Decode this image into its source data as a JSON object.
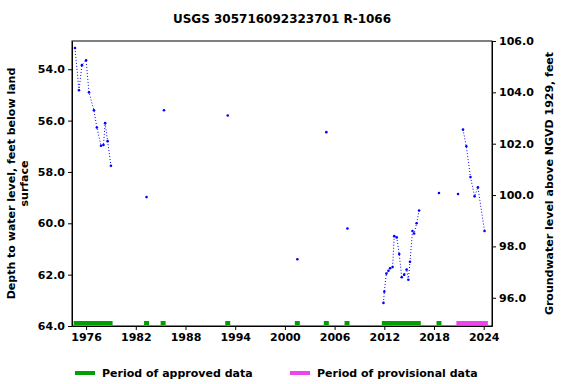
{
  "chart_data": {
    "type": "line",
    "title": "USGS 305716092323701 R-1066",
    "ylabel": [
      "Depth to water level, feet below land",
      "surface"
    ],
    "y2label": "Groundwater level above NGVD 1929, feet",
    "xlim": [
      1974.3,
      2025.0
    ],
    "xticks": [
      1976,
      1982,
      1988,
      1994,
      2000,
      2006,
      2012,
      2018,
      2024
    ],
    "ylim": [
      52.9,
      64.0
    ],
    "yticks": [
      {
        "value": 54,
        "label": "54.0"
      },
      {
        "value": 56,
        "label": "56.0"
      },
      {
        "value": 58,
        "label": "58.0"
      },
      {
        "value": 60,
        "label": "60.0"
      },
      {
        "value": 62,
        "label": "62.0"
      },
      {
        "value": 64,
        "label": "64.0"
      }
    ],
    "y2lim": [
      94.9,
      106.0
    ],
    "y2ticks": [
      {
        "value": 96,
        "label": "96.0"
      },
      {
        "value": 98,
        "label": "98.0"
      },
      {
        "value": 100,
        "label": "100.0"
      },
      {
        "value": 102,
        "label": "102.0"
      },
      {
        "value": 104,
        "label": "104.0"
      },
      {
        "value": 106,
        "label": "106.0"
      }
    ],
    "series": [
      {
        "color": "#0000ff",
        "marker": "circle",
        "line_style": "dotted",
        "x": [
          1974.66,
          1975.14,
          1975.5,
          1976.0,
          1976.35,
          1976.95,
          1977.3,
          1977.8,
          1978.1,
          1978.3,
          1978.6,
          1979.0,
          1981.0,
          1983.3,
          1984.3,
          1985.4,
          1989.0,
          1993.1,
          1997.0,
          2001.5,
          2003.0,
          2005.0,
          2006.0,
          2007.55,
          2009.0,
          2011.9,
          2012.0,
          2012.25,
          2012.5,
          2012.7,
          2013.0,
          2013.2,
          2013.5,
          2013.8,
          2014.1,
          2014.4,
          2014.7,
          2014.9,
          2015.1,
          2015.4,
          2015.6,
          2015.9,
          2016.2,
          2017.5,
          2018.6,
          2019.8,
          2020.9,
          2021.2,
          2021.5,
          2021.9,
          2022.4,
          2022.9,
          2023.3,
          2024.1
        ],
        "values": [
          53.17,
          54.82,
          53.84,
          53.65,
          54.9,
          55.6,
          56.27,
          56.98,
          56.95,
          56.1,
          56.8,
          57.76,
          null,
          58.98,
          null,
          55.6,
          null,
          55.8,
          null,
          61.4,
          null,
          56.45,
          null,
          60.2,
          null,
          63.1,
          62.66,
          61.96,
          61.85,
          61.75,
          61.7,
          60.5,
          60.55,
          61.2,
          62.1,
          62.0,
          61.8,
          62.2,
          61.5,
          60.3,
          60.4,
          60.0,
          59.5,
          null,
          58.82,
          null,
          58.86,
          null,
          56.35,
          57.0,
          58.2,
          58.95,
          58.6,
          60.3
        ]
      }
    ],
    "periods": [
      {
        "name": "Period of approved data",
        "color": "#00a000",
        "ranges": [
          [
            1974.5,
            1979.2
          ],
          [
            1983.0,
            1983.6
          ],
          [
            1985.0,
            1985.6
          ],
          [
            1992.8,
            1993.4
          ],
          [
            2001.2,
            2001.8
          ],
          [
            2004.7,
            2005.3
          ],
          [
            2007.2,
            2007.8
          ],
          [
            2011.7,
            2016.4
          ],
          [
            2018.3,
            2018.9
          ]
        ]
      },
      {
        "name": "Period of provisional data",
        "color": "#ee44ee",
        "ranges": [
          [
            2020.7,
            2024.5
          ]
        ]
      }
    ]
  }
}
